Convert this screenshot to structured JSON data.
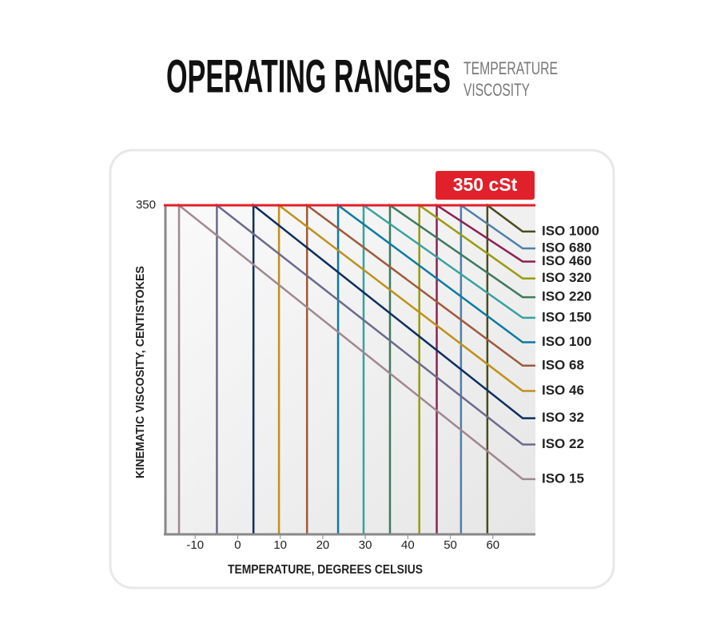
{
  "chart_data": {
    "type": "line",
    "title": "OPERATING RANGES",
    "subtitle": [
      "TEMPERATURE",
      "VISCOSITY"
    ],
    "y_label": "KINEMATIC VISCOSITY, CENTISTOKES",
    "x_label": "TEMPERATURE, DEGREES CELSIUS",
    "annotation": "350 cSt",
    "xlim": [
      -17,
      70
    ],
    "xticks": [
      -10,
      0,
      10,
      20,
      30,
      40,
      50,
      60
    ],
    "ylim": [
      0,
      350
    ],
    "yticks": [
      350
    ],
    "series": [
      {
        "name": "ISO 1000",
        "color": "#4a4a1e",
        "x": [
          58.7,
          58.7,
          67,
          70
        ],
        "values": [
          0,
          350,
          322,
          322
        ]
      },
      {
        "name": "ISO 680",
        "color": "#4f7fa8",
        "x": [
          52.5,
          52.5,
          67,
          70
        ],
        "values": [
          0,
          350,
          304,
          304
        ]
      },
      {
        "name": "ISO 460",
        "color": "#8b2252",
        "x": [
          46.8,
          46.8,
          67,
          70
        ],
        "values": [
          0,
          350,
          290,
          290
        ]
      },
      {
        "name": "ISO 320",
        "color": "#9a9a10",
        "x": [
          42.7,
          42.7,
          67,
          70
        ],
        "values": [
          0,
          350,
          272,
          272
        ]
      },
      {
        "name": "ISO 220",
        "color": "#3e7a5e",
        "x": [
          35.8,
          35.8,
          67,
          70
        ],
        "values": [
          0,
          350,
          252,
          252
        ]
      },
      {
        "name": "ISO 150",
        "color": "#3aa0a0",
        "x": [
          29.6,
          29.6,
          67,
          70
        ],
        "values": [
          0,
          350,
          230,
          230
        ]
      },
      {
        "name": "ISO 100",
        "color": "#0e7aa0",
        "x": [
          23.6,
          23.6,
          67,
          70
        ],
        "values": [
          0,
          350,
          204,
          204
        ]
      },
      {
        "name": "ISO 68",
        "color": "#9c5a3c",
        "x": [
          16.3,
          16.3,
          67,
          70
        ],
        "values": [
          0,
          350,
          179,
          179
        ]
      },
      {
        "name": "ISO 46",
        "color": "#c0901a",
        "x": [
          9.7,
          9.7,
          67,
          70
        ],
        "values": [
          0,
          350,
          152,
          152
        ]
      },
      {
        "name": "ISO 32",
        "color": "#0d2e5e",
        "x": [
          3.7,
          3.7,
          67,
          70
        ],
        "values": [
          0,
          350,
          123,
          123
        ]
      },
      {
        "name": "ISO 22",
        "color": "#6a6a8c",
        "x": [
          -4.9,
          -4.9,
          67,
          70
        ],
        "values": [
          0,
          350,
          95,
          95
        ]
      },
      {
        "name": "ISO 15",
        "color": "#a08890",
        "x": [
          -13.8,
          -13.8,
          67,
          70
        ],
        "values": [
          0,
          350,
          58,
          58
        ]
      }
    ]
  }
}
